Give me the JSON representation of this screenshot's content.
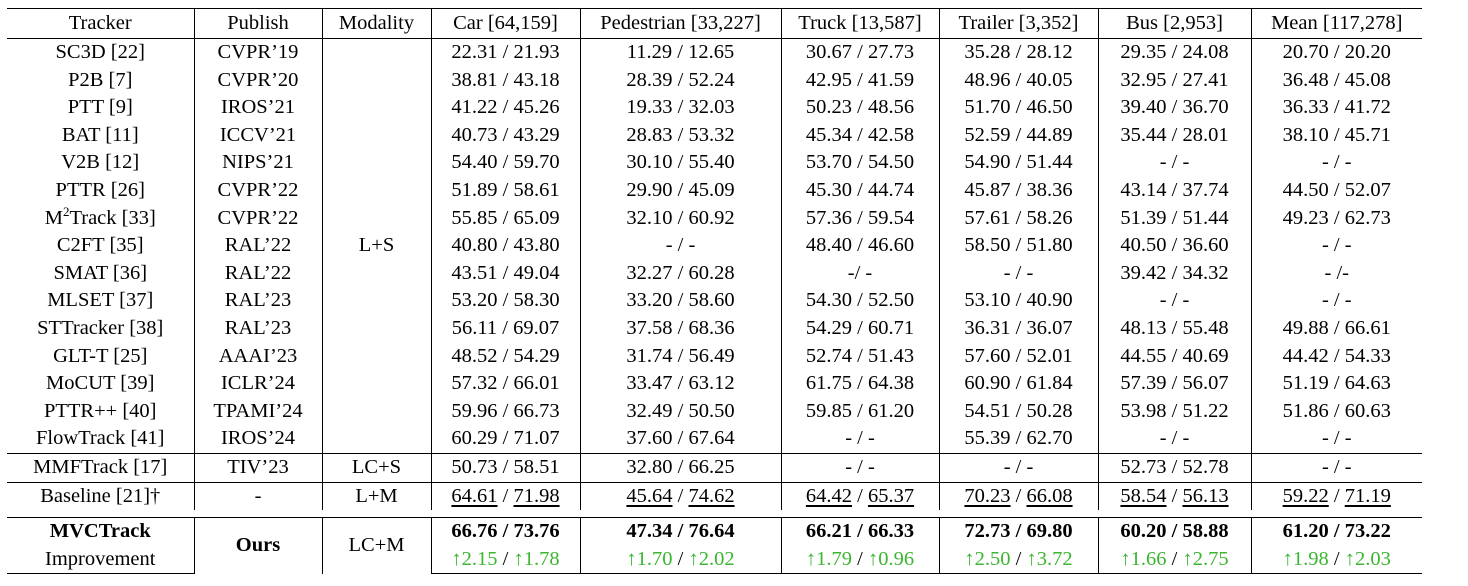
{
  "header": [
    "Tracker",
    "Publish",
    "Modality",
    "Car [64,159]",
    "Pedestrian [33,227]",
    "Truck [13,587]",
    "Trailer [3,352]",
    "Bus [2,953]",
    "Mean [117,278]"
  ],
  "group_ls": {
    "modality": "L+S",
    "rows": [
      {
        "tracker": "SC3D [22]",
        "publish": "CVPR’19",
        "values": [
          "22.31 / 21.93",
          "11.29 / 12.65",
          "30.67 / 27.73",
          "35.28 / 28.12",
          "29.35 / 24.08",
          "20.70 / 20.20"
        ]
      },
      {
        "tracker": "P2B [7]",
        "publish": "CVPR’20",
        "values": [
          "38.81 / 43.18",
          "28.39 / 52.24",
          "42.95 / 41.59",
          "48.96 / 40.05",
          "32.95 / 27.41",
          "36.48 / 45.08"
        ]
      },
      {
        "tracker": "PTT [9]",
        "publish": "IROS’21",
        "values": [
          "41.22 / 45.26",
          "19.33 / 32.03",
          "50.23 / 48.56",
          "51.70 / 46.50",
          "39.40 / 36.70",
          "36.33 / 41.72"
        ]
      },
      {
        "tracker": "BAT [11]",
        "publish": "ICCV’21",
        "values": [
          "40.73 / 43.29",
          "28.83 / 53.32",
          "45.34 / 42.58",
          "52.59 / 44.89",
          "35.44 / 28.01",
          "38.10 / 45.71"
        ]
      },
      {
        "tracker": "V2B [12]",
        "publish": "NIPS’21",
        "values": [
          "54.40 / 59.70",
          "30.10 / 55.40",
          "53.70 / 54.50",
          "54.90 / 51.44",
          "- / -",
          "- / -"
        ]
      },
      {
        "tracker": "PTTR [26]",
        "publish": "CVPR’22",
        "values": [
          "51.89 / 58.61",
          "29.90 / 45.09",
          "45.30 / 44.74",
          "45.87 / 38.36",
          "43.14 / 37.74",
          "44.50 / 52.07"
        ]
      },
      {
        "tracker": "M2Track [33]",
        "tracker_pre": "M",
        "tracker_sup": "2",
        "tracker_post": "Track [33]",
        "publish": "CVPR’22",
        "values": [
          "55.85 / 65.09",
          "32.10 / 60.92",
          "57.36 / 59.54",
          "57.61 / 58.26",
          "51.39 / 51.44",
          "49.23 / 62.73"
        ]
      },
      {
        "tracker": "C2FT [35]",
        "publish": "RAL’22",
        "values": [
          "40.80 / 43.80",
          "- / -",
          "48.40 / 46.60",
          "58.50 / 51.80",
          "40.50 / 36.60",
          "- / -"
        ]
      },
      {
        "tracker": "SMAT [36]",
        "publish": "RAL’22",
        "values": [
          "43.51 / 49.04",
          "32.27 / 60.28",
          "-/ -",
          "- / -",
          "39.42 / 34.32",
          "- /-"
        ]
      },
      {
        "tracker": "MLSET [37]",
        "publish": "RAL’23",
        "values": [
          "53.20 / 58.30",
          "33.20 / 58.60",
          "54.30 / 52.50",
          "53.10 / 40.90",
          "- / -",
          "- / -"
        ]
      },
      {
        "tracker": "STTracker [38]",
        "publish": "RAL’23",
        "values": [
          "56.11 / 69.07",
          "37.58 / 68.36",
          "54.29 / 60.71",
          "36.31 / 36.07",
          "48.13 / 55.48",
          "49.88 / 66.61"
        ]
      },
      {
        "tracker": "GLT-T [25]",
        "publish": "AAAI’23",
        "values": [
          "48.52 / 54.29",
          "31.74 / 56.49",
          "52.74 / 51.43",
          "57.60 / 52.01",
          "44.55 / 40.69",
          "44.42 / 54.33"
        ]
      },
      {
        "tracker": "MoCUT [39]",
        "publish": "ICLR’24",
        "values": [
          "57.32 / 66.01",
          "33.47 / 63.12",
          "61.75 / 64.38",
          "60.90 / 61.84",
          "57.39 / 56.07",
          "51.19 / 64.63"
        ]
      },
      {
        "tracker": "PTTR++ [40]",
        "publish": "TPAMI’24",
        "values": [
          "59.96 / 66.73",
          "32.49 / 50.50",
          "59.85 / 61.20",
          "54.51 / 50.28",
          "53.98 / 51.22",
          "51.86 / 60.63"
        ]
      },
      {
        "tracker": "FlowTrack [41]",
        "publish": "IROS’24",
        "values": [
          "60.29 / 71.07",
          "37.60 / 67.64",
          "- / -",
          "55.39 / 62.70",
          "- / -",
          "- / -"
        ]
      }
    ]
  },
  "mmf_row": {
    "tracker": "MMFTrack [17]",
    "publish": "TIV’23",
    "modality": "LC+S",
    "values": [
      "50.73 / 58.51",
      "32.80 / 66.25",
      "- / -",
      "- / -",
      "52.73 / 52.78",
      "- / -"
    ]
  },
  "baseline_row": {
    "tracker": "Baseline [21]†",
    "publish": "-",
    "modality": "L+M",
    "values": [
      [
        "64.61",
        "71.98"
      ],
      [
        "45.64",
        "74.62"
      ],
      [
        "64.42",
        "65.37"
      ],
      [
        "70.23",
        "66.08"
      ],
      [
        "58.54",
        "56.13"
      ],
      [
        "59.22",
        "71.19"
      ]
    ]
  },
  "ours": {
    "tracker": "MVCTrack",
    "improvement_label": "Improvement",
    "publish": "Ours",
    "modality": "LC+M",
    "values": [
      "66.76 / 73.76",
      "47.34 / 76.64",
      "66.21 / 66.33",
      "72.73 / 69.80",
      "60.20 / 58.88",
      "61.20 / 73.22"
    ],
    "improvements": [
      [
        "↑2.15",
        "↑1.78"
      ],
      [
        "↑1.70",
        "↑2.02"
      ],
      [
        "↑1.79",
        "↑0.96"
      ],
      [
        "↑2.50",
        "↑3.72"
      ],
      [
        "↑1.66",
        "↑2.75"
      ],
      [
        "↑1.98",
        "↑2.03"
      ]
    ]
  },
  "colors": {
    "improvement": "#3cb531",
    "rule": "#000000"
  }
}
